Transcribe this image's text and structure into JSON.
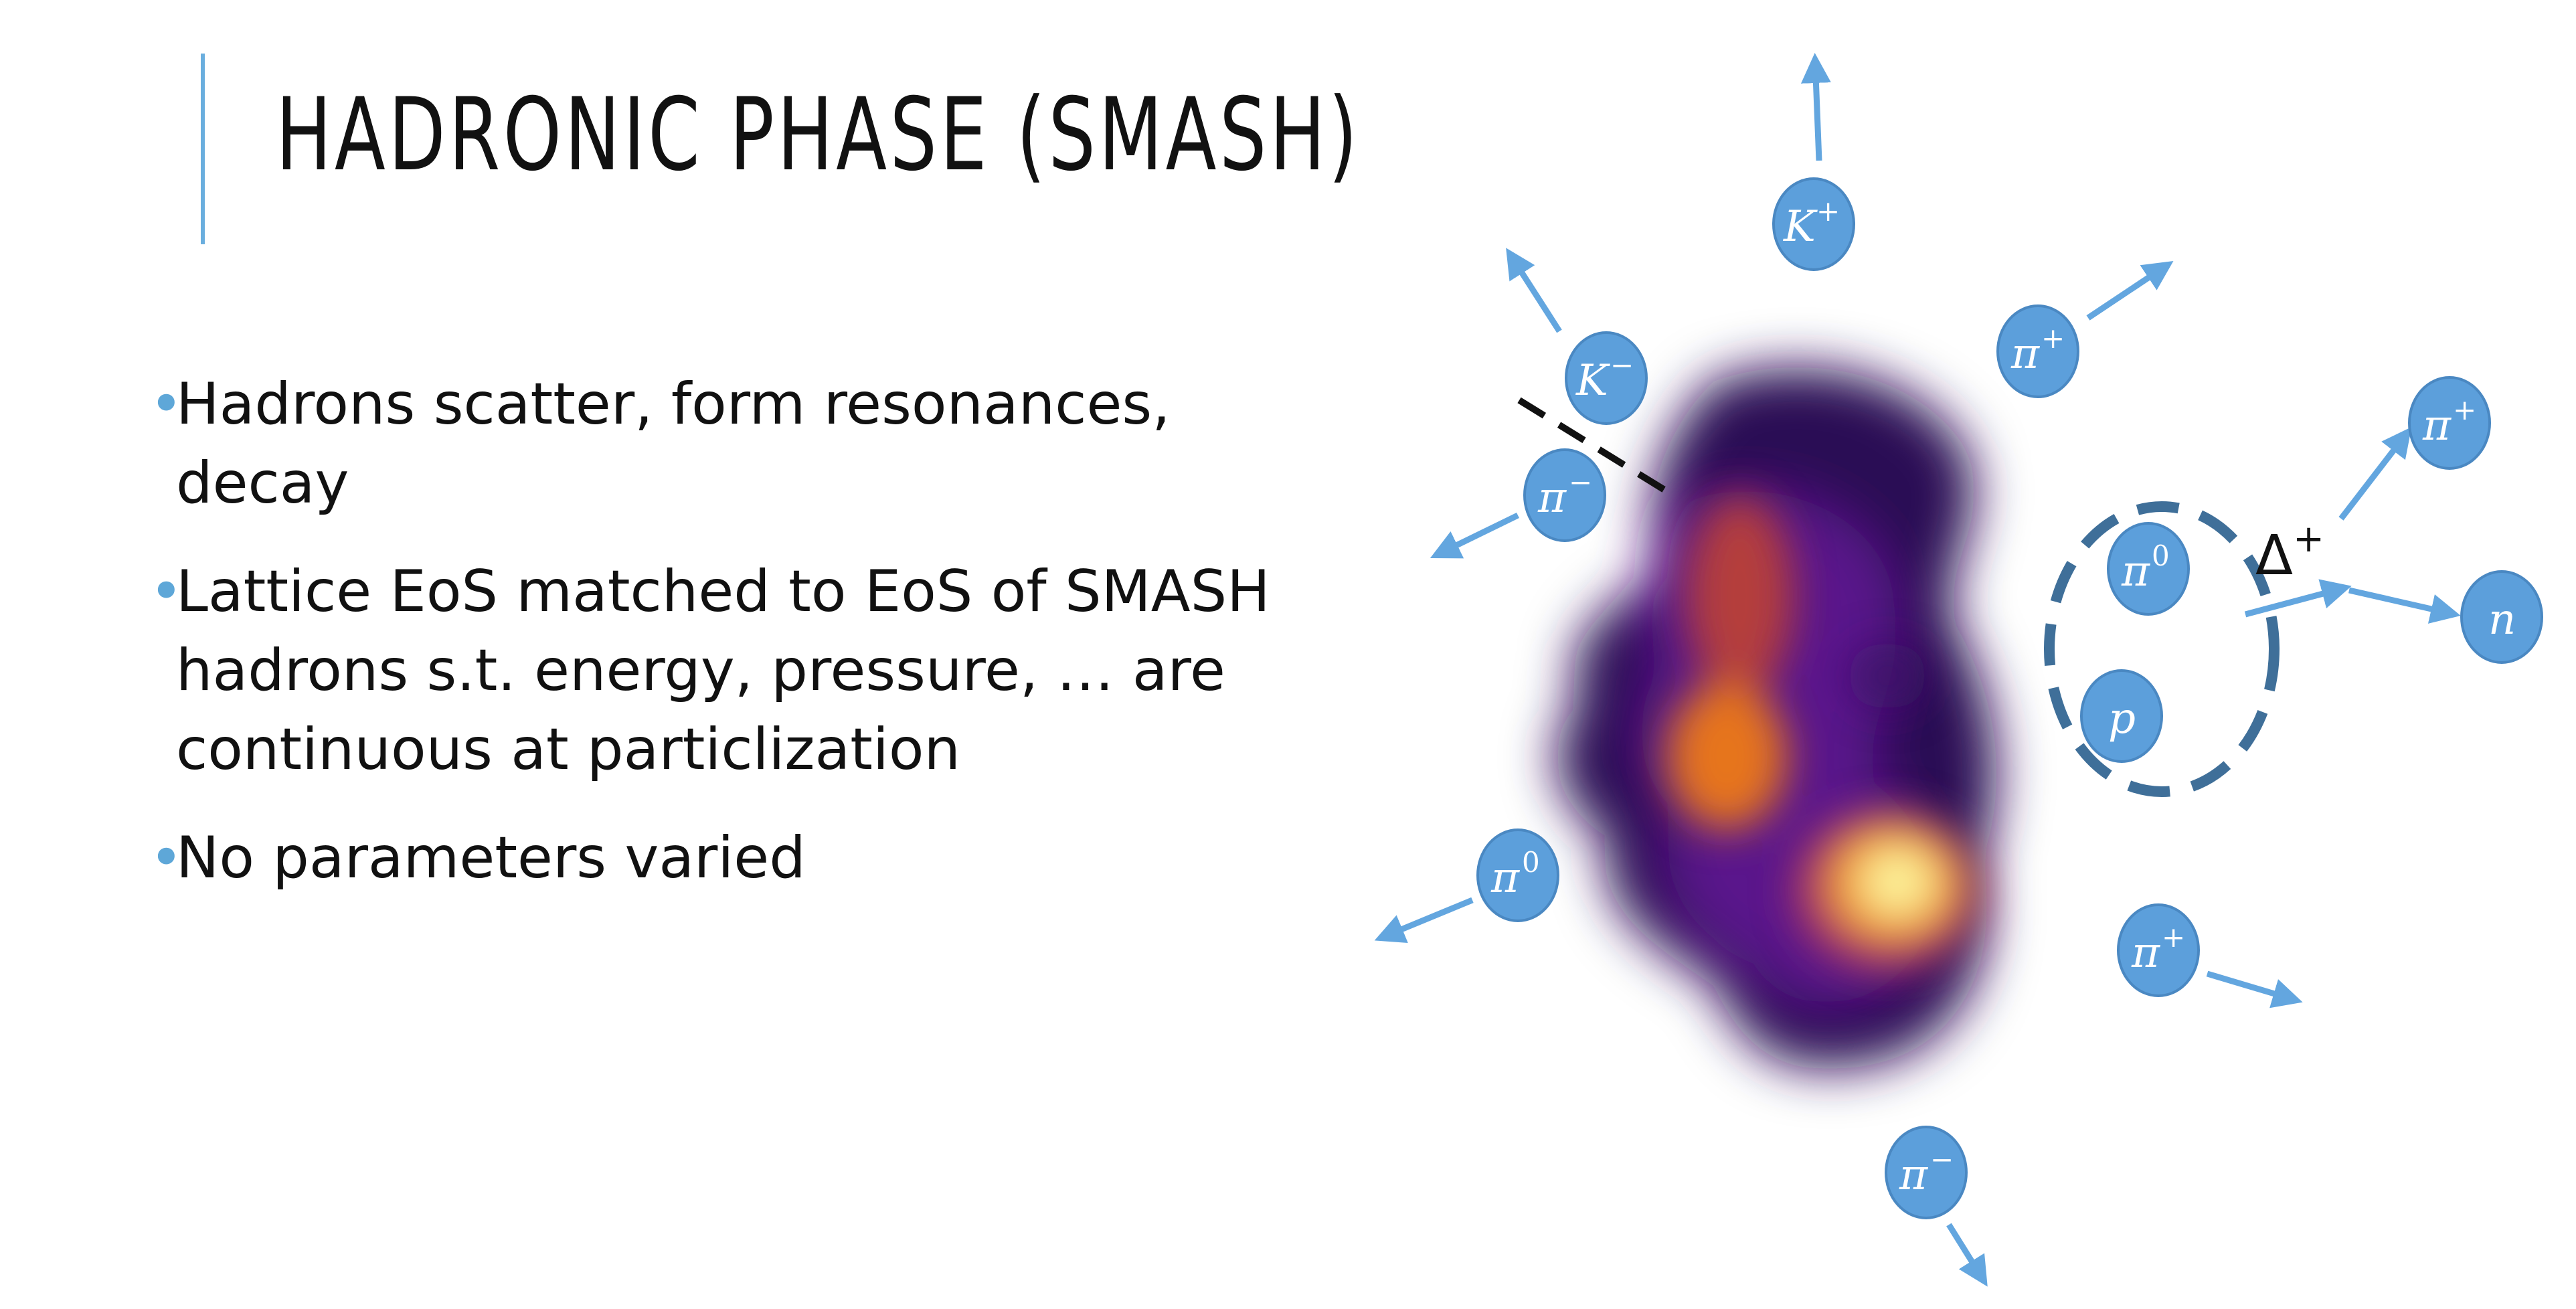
{
  "slide": {
    "title": "HADRONIC PHASE (SMASH)",
    "bullets": [
      "Hadrons scatter, form resonances, decay",
      "Lattice EoS matched to EoS of SMASH hadrons s.t. energy, pressure, … are continuous at particlization",
      "No parameters varied"
    ],
    "bullet_marker": "•"
  },
  "diagram": {
    "particles": [
      {
        "symbol": "K",
        "charge": "+"
      },
      {
        "symbol": "K",
        "charge": "−"
      },
      {
        "symbol": "π",
        "charge": "+"
      },
      {
        "symbol": "π",
        "charge": "−"
      },
      {
        "symbol": "π",
        "charge": "+"
      },
      {
        "symbol": "π",
        "charge": "0"
      },
      {
        "symbol": "p",
        "charge": ""
      },
      {
        "symbol": "n",
        "charge": ""
      },
      {
        "symbol": "π",
        "charge": "0"
      },
      {
        "symbol": "π",
        "charge": "+"
      },
      {
        "symbol": "π",
        "charge": "−"
      }
    ],
    "resonance": {
      "symbol": "Δ",
      "charge": "+"
    },
    "colors": {
      "particle_fill": "#5c9fdb",
      "particle_stroke": "#4a88c2",
      "arrow": "#63a6df",
      "resonance_ring": "#3f6f99",
      "accent": "#6aaede"
    }
  }
}
